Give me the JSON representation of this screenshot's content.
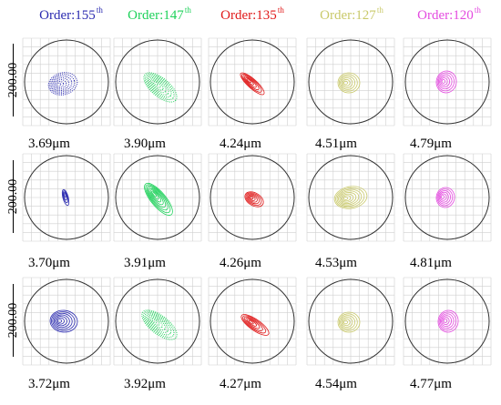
{
  "colors": {
    "blue": "#2b2bb0",
    "green": "#1ed15a",
    "red": "#e01818",
    "yellow": "#c9c96a",
    "magenta": "#e44be0",
    "grid": "#cfcfcf",
    "circle": "#333333"
  },
  "headers": [
    {
      "label": "Order:155",
      "sup": "th",
      "color": "#2b2bb0"
    },
    {
      "label": "Order:147",
      "sup": "th",
      "color": "#1ed15a"
    },
    {
      "label": "Order:135",
      "sup": "th",
      "color": "#e01818"
    },
    {
      "label": "Order:127",
      "sup": "th",
      "color": "#c9c96a"
    },
    {
      "label": "Order:120",
      "sup": "th",
      "color": "#e44be0"
    }
  ],
  "row_labels": [
    "200.00",
    "200.00",
    "200.00"
  ],
  "rows": [
    {
      "values": [
        "3.69μm",
        "3.90μm",
        "4.24μm",
        "4.51μm",
        "4.79μm"
      ]
    },
    {
      "values": [
        "3.70μm",
        "3.91μm",
        "4.26μm",
        "4.53μm",
        "4.81μm"
      ]
    },
    {
      "values": [
        "3.72μm",
        "3.92μm",
        "4.27μm",
        "4.54μm",
        "4.77μm"
      ]
    }
  ],
  "spots": [
    [
      {
        "color": "blue",
        "rx": 16,
        "ry": 12,
        "rot": -15,
        "dx": -4,
        "dy": 2,
        "rings": 7,
        "style": "dots"
      },
      {
        "color": "green",
        "rx": 22,
        "ry": 10,
        "rot": 40,
        "dx": 3,
        "dy": 6,
        "rings": 8,
        "style": "dots"
      },
      {
        "color": "red",
        "rx": 17,
        "ry": 5,
        "rot": 42,
        "dx": 0,
        "dy": 2,
        "rings": 6,
        "style": "lines"
      },
      {
        "color": "yellow",
        "rx": 12,
        "ry": 11,
        "rot": 0,
        "dx": -2,
        "dy": 1,
        "rings": 6,
        "style": "lines"
      },
      {
        "color": "magenta",
        "rx": 11,
        "ry": 12,
        "rot": 10,
        "dx": -1,
        "dy": 0,
        "rings": 6,
        "style": "lines"
      }
    ],
    [
      {
        "color": "blue",
        "rx": 9,
        "ry": 3,
        "rot": 75,
        "dx": -1,
        "dy": 0,
        "rings": 4,
        "style": "lines"
      },
      {
        "color": "green",
        "rx": 22,
        "ry": 8,
        "rot": 50,
        "dx": 1,
        "dy": 2,
        "rings": 8,
        "style": "lines"
      },
      {
        "color": "red",
        "rx": 11,
        "ry": 7,
        "rot": 30,
        "dx": 2,
        "dy": 2,
        "rings": 6,
        "style": "lines"
      },
      {
        "color": "yellow",
        "rx": 18,
        "ry": 12,
        "rot": -10,
        "dx": 0,
        "dy": 0,
        "rings": 8,
        "style": "lines"
      },
      {
        "color": "magenta",
        "rx": 10,
        "ry": 11,
        "rot": 10,
        "dx": -2,
        "dy": 0,
        "rings": 6,
        "style": "lines"
      }
    ],
    [
      {
        "color": "blue",
        "rx": 15,
        "ry": 12,
        "rot": 5,
        "dx": -3,
        "dy": 0,
        "rings": 7,
        "style": "lines"
      },
      {
        "color": "green",
        "rx": 23,
        "ry": 10,
        "rot": 38,
        "dx": 2,
        "dy": 4,
        "rings": 8,
        "style": "dots"
      },
      {
        "color": "red",
        "rx": 18,
        "ry": 6,
        "rot": 35,
        "dx": 3,
        "dy": 4,
        "rings": 6,
        "style": "lines"
      },
      {
        "color": "yellow",
        "rx": 12,
        "ry": 11,
        "rot": 0,
        "dx": -2,
        "dy": 1,
        "rings": 6,
        "style": "lines"
      },
      {
        "color": "magenta",
        "rx": 11,
        "ry": 12,
        "rot": 10,
        "dx": 1,
        "dy": 0,
        "rings": 6,
        "style": "lines"
      }
    ]
  ]
}
